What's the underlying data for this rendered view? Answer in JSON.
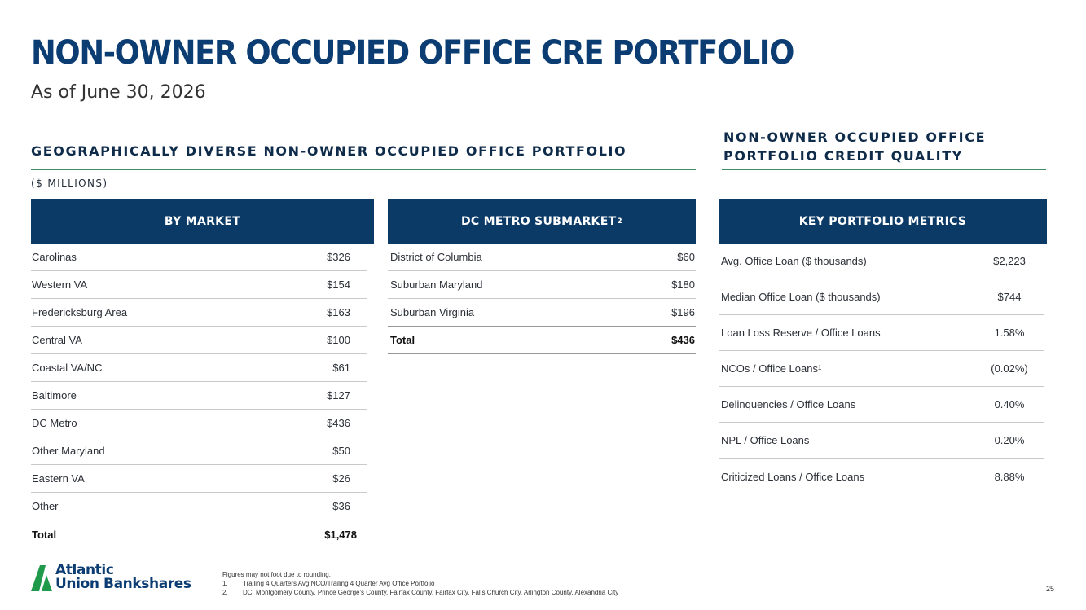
{
  "header": {
    "title": "NON-OWNER OCCUPIED OFFICE CRE PORTFOLIO",
    "subtitle": "As of June 30, 2026"
  },
  "left_section": {
    "heading": "GEOGRAPHICALLY DIVERSE NON-OWNER OCCUPIED OFFICE PORTFOLIO",
    "units": "($ MILLIONS)"
  },
  "right_section": {
    "heading_line1": "NON-OWNER OCCUPIED OFFICE",
    "heading_line2": "PORTFOLIO CREDIT QUALITY"
  },
  "by_market": {
    "header": "BY MARKET",
    "rows": [
      {
        "label": "Carolinas",
        "value": "$326"
      },
      {
        "label": "Western VA",
        "value": "$154"
      },
      {
        "label": "Fredericksburg Area",
        "value": "$163"
      },
      {
        "label": "Central VA",
        "value": "$100"
      },
      {
        "label": "Coastal VA/NC",
        "value": "$61"
      },
      {
        "label": "Baltimore",
        "value": "$127"
      },
      {
        "label": "DC Metro",
        "value": "$436"
      },
      {
        "label": "Other Maryland",
        "value": "$50"
      },
      {
        "label": "Eastern VA",
        "value": "$26"
      },
      {
        "label": "Other",
        "value": "$36"
      }
    ],
    "total": {
      "label": "Total",
      "value": "$1,478"
    }
  },
  "dc_metro": {
    "header": "DC METRO SUBMARKET",
    "header_sup": "2",
    "rows": [
      {
        "label": "District of Columbia",
        "value": "$60"
      },
      {
        "label": "Suburban Maryland",
        "value": "$180"
      },
      {
        "label": "Suburban Virginia",
        "value": "$196"
      }
    ],
    "total": {
      "label": "Total",
      "value": "$436"
    }
  },
  "key_metrics": {
    "header": "KEY PORTFOLIO METRICS",
    "rows": [
      {
        "label": "Avg. Office Loan ($ thousands)",
        "value": "$2,223"
      },
      {
        "label": "Median Office Loan ($ thousands)",
        "value": "$744"
      },
      {
        "label": "Loan Loss Reserve / Office Loans",
        "value": "1.58%"
      },
      {
        "label": "NCOs / Office Loans¹",
        "value": "(0.02%)"
      },
      {
        "label": "Delinquencies / Office Loans",
        "value": "0.40%"
      },
      {
        "label": "NPL / Office Loans",
        "value": "0.20%"
      },
      {
        "label": "Criticized Loans / Office Loans",
        "value": "8.88%"
      }
    ]
  },
  "logo": {
    "line1": "Atlantic",
    "line2": "Union Bankshares",
    "icon": "triangle-a-icon"
  },
  "footnotes": {
    "intro": "Figures may not foot due to rounding.",
    "items": [
      {
        "num": "1.",
        "text": "Trailing 4 Quarters Avg NCO/Trailing 4 Quarter Avg Office Portfolio"
      },
      {
        "num": "2.",
        "text": "DC, Montgomery County, Prince George's County, Fairfax County, Fairfax City, Falls Church City, Arlington County, Alexandria City"
      }
    ]
  },
  "page_number": "25",
  "colors": {
    "navy": "#0b3a66",
    "title_blue": "#0b3d73",
    "rule_green": "#3e8e64",
    "logo_green": "#1f9a4a"
  }
}
